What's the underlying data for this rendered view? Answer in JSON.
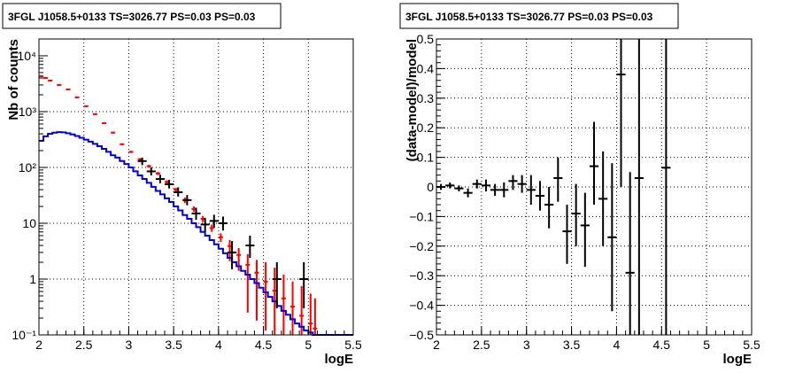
{
  "chart_data": [
    {
      "type": "line",
      "title": "3FGL J1058.5+0133 TS=3026.77 PS=0.03 PS=0.03",
      "xlabel": "logE",
      "ylabel": "Nb of counts",
      "xlim": [
        2,
        5.5
      ],
      "ylim": [
        0.1,
        20000
      ],
      "ylog": true,
      "grid": true,
      "x_ticks": [
        2,
        2.5,
        3,
        3.5,
        4,
        4.5,
        5,
        5.5
      ],
      "x_tick_labels": [
        "2",
        "2.5",
        "3",
        "3.5",
        "4",
        "4.5",
        "5",
        "5.5"
      ],
      "y_ticks": [
        0.1,
        1,
        10,
        100,
        1000,
        10000
      ],
      "y_tick_labels": [
        "10⁻¹",
        "1",
        "10",
        "10²",
        "10³",
        "10⁴"
      ],
      "series": [
        {
          "color": "#ff0000",
          "style": "errorbar",
          "points": [
            {
              "x": 2.025,
              "y": 4300,
              "lo": 4150,
              "hi": 4450
            },
            {
              "x": 2.075,
              "y": 4000,
              "lo": 3860,
              "hi": 4140
            },
            {
              "x": 2.125,
              "y": 3600,
              "lo": 3480,
              "hi": 3720
            },
            {
              "x": 2.225,
              "y": 3000,
              "lo": 2900,
              "hi": 3100
            },
            {
              "x": 2.325,
              "y": 2500,
              "lo": 2420,
              "hi": 2580
            },
            {
              "x": 2.425,
              "y": 1800,
              "lo": 1740,
              "hi": 1860
            },
            {
              "x": 2.525,
              "y": 1250,
              "lo": 1210,
              "hi": 1290
            },
            {
              "x": 2.625,
              "y": 900,
              "lo": 870,
              "hi": 930
            },
            {
              "x": 2.725,
              "y": 620,
              "lo": 600,
              "hi": 640
            },
            {
              "x": 2.825,
              "y": 420,
              "lo": 405,
              "hi": 435
            },
            {
              "x": 2.925,
              "y": 260,
              "lo": 250,
              "hi": 270
            },
            {
              "x": 3.025,
              "y": 190,
              "lo": 182,
              "hi": 198
            },
            {
              "x": 3.125,
              "y": 140,
              "lo": 133,
              "hi": 147
            },
            {
              "x": 3.225,
              "y": 105,
              "lo": 99,
              "hi": 111
            },
            {
              "x": 3.325,
              "y": 78,
              "lo": 73,
              "hi": 83
            },
            {
              "x": 3.425,
              "y": 55,
              "lo": 51,
              "hi": 59
            },
            {
              "x": 3.525,
              "y": 40,
              "lo": 37,
              "hi": 43
            },
            {
              "x": 3.625,
              "y": 26,
              "lo": 23,
              "hi": 29
            },
            {
              "x": 3.725,
              "y": 18,
              "lo": 16,
              "hi": 20
            },
            {
              "x": 3.825,
              "y": 12,
              "lo": 10.5,
              "hi": 13.5
            },
            {
              "x": 3.925,
              "y": 8.2,
              "lo": 7,
              "hi": 9.5
            },
            {
              "x": 4.025,
              "y": 5.6,
              "lo": 4.6,
              "hi": 6.6
            },
            {
              "x": 4.125,
              "y": 3.9,
              "lo": 2.1,
              "hi": 5.0
            },
            {
              "x": 4.225,
              "y": 2.7,
              "lo": 1.4,
              "hi": 3.6
            },
            {
              "x": 4.325,
              "y": 1.8,
              "lo": 0.25,
              "hi": 2.8
            },
            {
              "x": 4.425,
              "y": 1.3,
              "lo": 0.18,
              "hi": 2.2
            },
            {
              "x": 4.525,
              "y": 0.9,
              "lo": 0.12,
              "hi": 2.0
            },
            {
              "x": 4.625,
              "y": 0.62,
              "lo": 0.1,
              "hi": 1.6
            },
            {
              "x": 4.725,
              "y": 0.45,
              "lo": 0.1,
              "hi": 1.2
            },
            {
              "x": 4.825,
              "y": 0.32,
              "lo": 0.1,
              "hi": 0.9
            },
            {
              "x": 4.925,
              "y": 0.22,
              "lo": 0.1,
              "hi": 0.75
            },
            {
              "x": 5.025,
              "y": 0.16,
              "lo": 0.1,
              "hi": 0.55
            },
            {
              "x": 5.075,
              "y": 0.13,
              "lo": 0.1,
              "hi": 0.45
            }
          ]
        },
        {
          "color": "#0000dd",
          "style": "histogram",
          "edges": [
            2.0,
            2.05,
            2.1,
            2.15,
            2.2,
            2.25,
            2.3,
            2.35,
            2.4,
            2.45,
            2.5,
            2.55,
            2.6,
            2.65,
            2.7,
            2.75,
            2.8,
            2.85,
            2.9,
            2.95,
            3.0,
            3.05,
            3.1,
            3.15,
            3.2,
            3.25,
            3.3,
            3.35,
            3.4,
            3.45,
            3.5,
            3.55,
            3.6,
            3.65,
            3.7,
            3.75,
            3.8,
            3.85,
            3.9,
            3.95,
            4.0,
            4.05,
            4.1,
            4.15,
            4.2,
            4.25,
            4.3,
            4.35,
            4.4,
            4.45,
            4.5,
            4.55,
            4.6,
            4.65,
            4.7,
            4.75,
            4.8,
            4.85,
            4.9,
            4.95,
            5.0,
            5.05,
            5.1,
            5.5
          ],
          "values": [
            300,
            360,
            400,
            420,
            430,
            425,
            410,
            390,
            365,
            340,
            315,
            290,
            265,
            240,
            215,
            190,
            165,
            150,
            130,
            115,
            100,
            85,
            72,
            62,
            53,
            45,
            38,
            33,
            28,
            24,
            20,
            17,
            14,
            12,
            10,
            8.5,
            7,
            6,
            5,
            4.2,
            3.5,
            2.9,
            2.4,
            2.0,
            1.7,
            1.4,
            1.2,
            1.0,
            0.85,
            0.7,
            0.58,
            0.48,
            0.4,
            0.33,
            0.27,
            0.23,
            0.19,
            0.16,
            0.14,
            0.12,
            0.11,
            0.1,
            0.1
          ]
        },
        {
          "color": "#000000",
          "style": "errorbar",
          "points": [
            {
              "x": 3.15,
              "y": 130,
              "lo": 110,
              "hi": 150,
              "xw": 0.05
            },
            {
              "x": 3.25,
              "y": 85,
              "lo": 72,
              "hi": 100,
              "xw": 0.05
            },
            {
              "x": 3.35,
              "y": 62,
              "lo": 52,
              "hi": 74,
              "xw": 0.05
            },
            {
              "x": 3.45,
              "y": 50,
              "lo": 42,
              "hi": 60,
              "xw": 0.05
            },
            {
              "x": 3.55,
              "y": 36,
              "lo": 30,
              "hi": 44,
              "xw": 0.05
            },
            {
              "x": 3.65,
              "y": 26,
              "lo": 21,
              "hi": 32,
              "xw": 0.05
            },
            {
              "x": 3.75,
              "y": 15,
              "lo": 11.5,
              "hi": 19,
              "xw": 0.05
            },
            {
              "x": 3.85,
              "y": 9.5,
              "lo": 7,
              "hi": 12.5,
              "xw": 0.05
            },
            {
              "x": 3.95,
              "y": 11,
              "lo": 8.3,
              "hi": 14.2,
              "xw": 0.05
            },
            {
              "x": 4.05,
              "y": 10,
              "lo": 7.4,
              "hi": 13.2,
              "xw": 0.05
            },
            {
              "x": 4.15,
              "y": 3,
              "lo": 1.5,
              "hi": 4.8,
              "xw": 0.05
            },
            {
              "x": 4.35,
              "y": 4,
              "lo": 2.4,
              "hi": 6.0,
              "xw": 0.05
            },
            {
              "x": 4.65,
              "y": 1,
              "lo": 0.3,
              "hi": 2.0,
              "xw": 0.05
            },
            {
              "x": 4.95,
              "y": 1,
              "lo": 0.3,
              "hi": 2.0,
              "xw": 0.05
            }
          ]
        }
      ]
    },
    {
      "type": "scatter",
      "title": "3FGL J1058.5+0133 TS=3026.77 PS=0.03 PS=0.03",
      "xlabel": "logE",
      "ylabel": "(data-model)/model",
      "xlim": [
        2,
        5.5
      ],
      "ylim": [
        -0.5,
        0.5
      ],
      "grid": true,
      "x_ticks": [
        2,
        2.5,
        3,
        3.5,
        4,
        4.5,
        5,
        5.5
      ],
      "x_tick_labels": [
        "2",
        "2.5",
        "3",
        "3.5",
        "4",
        "4.5",
        "5",
        "5.5"
      ],
      "y_ticks": [
        -0.5,
        -0.4,
        -0.3,
        -0.2,
        -0.1,
        0,
        0.1,
        0.2,
        0.3,
        0.4,
        0.5
      ],
      "y_tick_labels": [
        "−0.5",
        "−0.4",
        "−0.3",
        "−0.2",
        "−0.1",
        "0",
        "0.1",
        "0.2",
        "0.3",
        "0.4",
        "0.5"
      ],
      "series": [
        {
          "color": "#000000",
          "style": "errorbar",
          "points": [
            {
              "x": 2.05,
              "y": 0.0,
              "lo": -0.01,
              "hi": 0.01,
              "xw": 0.05
            },
            {
              "x": 2.15,
              "y": 0.005,
              "lo": -0.005,
              "hi": 0.015,
              "xw": 0.05
            },
            {
              "x": 2.25,
              "y": -0.005,
              "lo": -0.015,
              "hi": 0.005,
              "xw": 0.05
            },
            {
              "x": 2.35,
              "y": -0.02,
              "lo": -0.035,
              "hi": -0.005,
              "xw": 0.05
            },
            {
              "x": 2.45,
              "y": 0.01,
              "lo": -0.005,
              "hi": 0.025,
              "xw": 0.05
            },
            {
              "x": 2.55,
              "y": 0.005,
              "lo": -0.015,
              "hi": 0.025,
              "xw": 0.05
            },
            {
              "x": 2.65,
              "y": -0.01,
              "lo": -0.03,
              "hi": 0.01,
              "xw": 0.05
            },
            {
              "x": 2.75,
              "y": -0.01,
              "lo": -0.035,
              "hi": 0.015,
              "xw": 0.05
            },
            {
              "x": 2.85,
              "y": 0.02,
              "lo": -0.01,
              "hi": 0.04,
              "xw": 0.05
            },
            {
              "x": 2.95,
              "y": 0.01,
              "lo": -0.02,
              "hi": 0.04,
              "xw": 0.05
            },
            {
              "x": 3.05,
              "y": -0.01,
              "lo": -0.06,
              "hi": 0.04,
              "xw": 0.05
            },
            {
              "x": 3.15,
              "y": -0.03,
              "lo": -0.08,
              "hi": 0.02,
              "xw": 0.05
            },
            {
              "x": 3.25,
              "y": -0.06,
              "lo": -0.14,
              "hi": 0.0,
              "xw": 0.05
            },
            {
              "x": 3.35,
              "y": 0.03,
              "lo": -0.05,
              "hi": 0.1,
              "xw": 0.05
            },
            {
              "x": 3.45,
              "y": -0.15,
              "lo": -0.26,
              "hi": -0.06,
              "xw": 0.05
            },
            {
              "x": 3.55,
              "y": -0.09,
              "lo": -0.2,
              "hi": 0.01,
              "xw": 0.05
            },
            {
              "x": 3.65,
              "y": -0.13,
              "lo": -0.27,
              "hi": -0.02,
              "xw": 0.05
            },
            {
              "x": 3.75,
              "y": 0.07,
              "lo": -0.06,
              "hi": 0.22,
              "xw": 0.05
            },
            {
              "x": 3.85,
              "y": -0.04,
              "lo": -0.2,
              "hi": 0.12,
              "xw": 0.05
            },
            {
              "x": 3.95,
              "y": -0.17,
              "lo": -0.42,
              "hi": 0.08,
              "xw": 0.05
            },
            {
              "x": 4.05,
              "y": 0.38,
              "lo": 0.0,
              "hi": 0.5,
              "xw": 0.05
            },
            {
              "x": 4.15,
              "y": -0.29,
              "lo": -0.5,
              "hi": 0.05,
              "xw": 0.05
            },
            {
              "x": 4.25,
              "y": 0.03,
              "lo": -0.5,
              "hi": 0.5,
              "xw": 0.05
            },
            {
              "x": 4.55,
              "y": 0.065,
              "lo": -0.5,
              "hi": 0.5,
              "xw": 0.05
            }
          ]
        }
      ]
    }
  ]
}
